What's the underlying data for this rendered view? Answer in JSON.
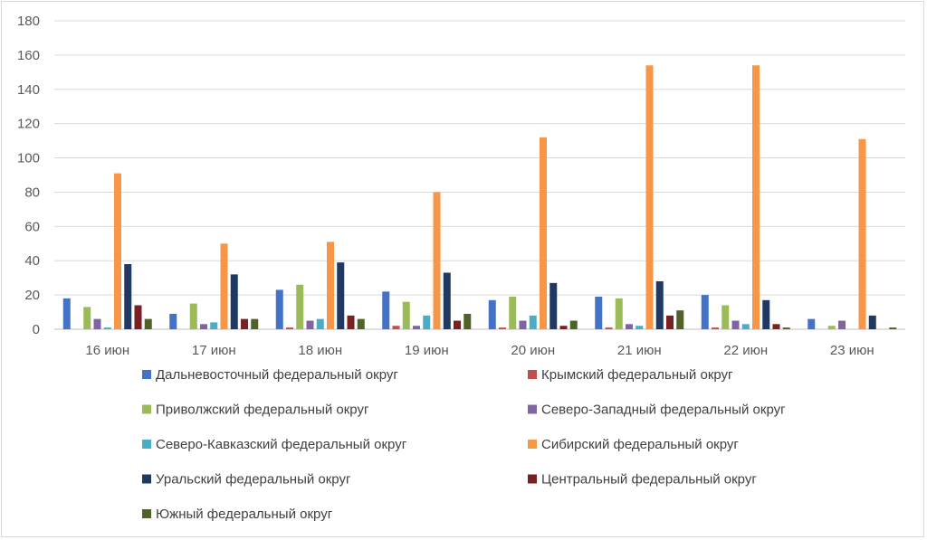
{
  "chart_data": {
    "type": "bar",
    "categories": [
      "16 июн",
      "17 июн",
      "18 июн",
      "19 июн",
      "20 июн",
      "21 июн",
      "22 июн",
      "23 июн"
    ],
    "ylim": [
      0,
      180
    ],
    "yticks": [
      0,
      20,
      40,
      60,
      80,
      100,
      120,
      140,
      160,
      180
    ],
    "grid": true,
    "legend_position": "bottom",
    "series": [
      {
        "name": "Дальневосточный федеральный округ",
        "color": "#4472c4",
        "values": [
          18,
          9,
          23,
          22,
          17,
          19,
          20,
          6
        ]
      },
      {
        "name": "Крымский федеральный округ",
        "color": "#c0504d",
        "values": [
          0,
          0,
          1,
          2,
          1,
          1,
          1,
          0
        ]
      },
      {
        "name": "Приволжский федеральный округ",
        "color": "#9bbb59",
        "values": [
          13,
          15,
          26,
          16,
          19,
          18,
          14,
          2
        ]
      },
      {
        "name": "Северо-Западный федеральный округ",
        "color": "#8064a2",
        "values": [
          6,
          3,
          5,
          2,
          5,
          3,
          5,
          5
        ]
      },
      {
        "name": "Северо-Кавказский федеральный округ",
        "color": "#4bacc6",
        "values": [
          1,
          4,
          6,
          8,
          8,
          2,
          3,
          0
        ]
      },
      {
        "name": "Сибирский федеральный округ",
        "color": "#f79646",
        "values": [
          91,
          50,
          51,
          80,
          112,
          154,
          154,
          111
        ]
      },
      {
        "name": "Уральский федеральный округ",
        "color": "#1f3864",
        "values": [
          38,
          32,
          39,
          33,
          27,
          28,
          17,
          8
        ]
      },
      {
        "name": "Центральный федеральный округ",
        "color": "#7b2020",
        "values": [
          14,
          6,
          8,
          5,
          2,
          8,
          3,
          0
        ]
      },
      {
        "name": "Южный федеральный округ",
        "color": "#4f6228",
        "values": [
          6,
          6,
          6,
          9,
          5,
          11,
          1,
          1
        ]
      }
    ]
  }
}
